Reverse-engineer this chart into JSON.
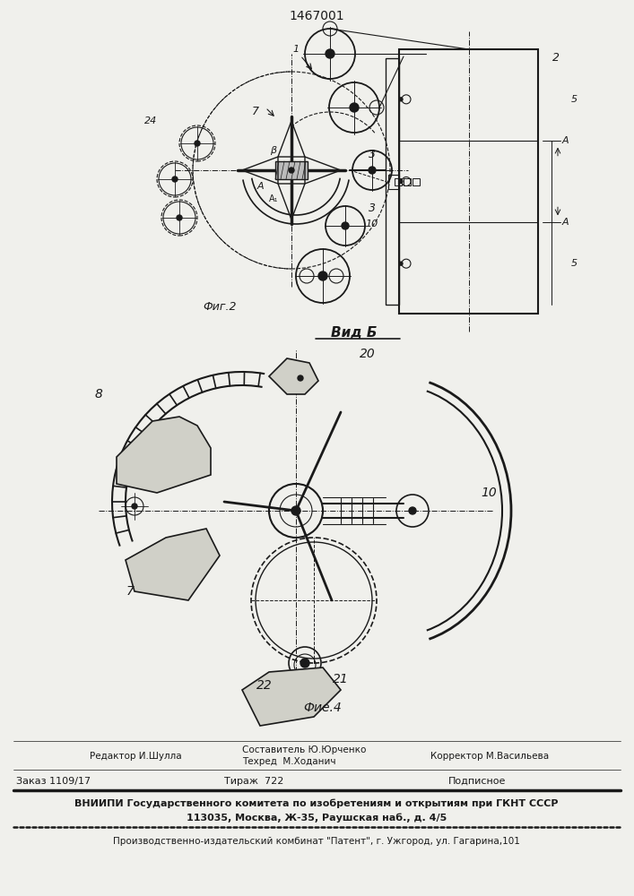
{
  "patent_number": "1467001",
  "bg_color": "#f0f0ec",
  "line_color": "#1a1a1a",
  "fig2_label": "Фиг.2",
  "vid_b_label": "Вид Б",
  "fig4_label": "Фие.4",
  "footer": {
    "line1_left": "Редактор И.Шулла",
    "line1_center_top": "Составитель Ю.Юрченко",
    "line1_center_bot": "Техред  М.Ходанич",
    "line1_right": "Корректор М.Васильева",
    "line2_left": "Заказ 1109/17",
    "line2_center": "Тираж  722",
    "line2_right": "Подписное",
    "line3": "ВНИИПИ Государственного комитета по изобретениям и открытиям при ГКНТ СССР",
    "line4": "113035, Москва, Ж-35, Раушская наб., д. 4/5",
    "line5": "Производственно-издательский комбинат \"Патент\", г. Ужгород, ул. Гагарина,101"
  }
}
